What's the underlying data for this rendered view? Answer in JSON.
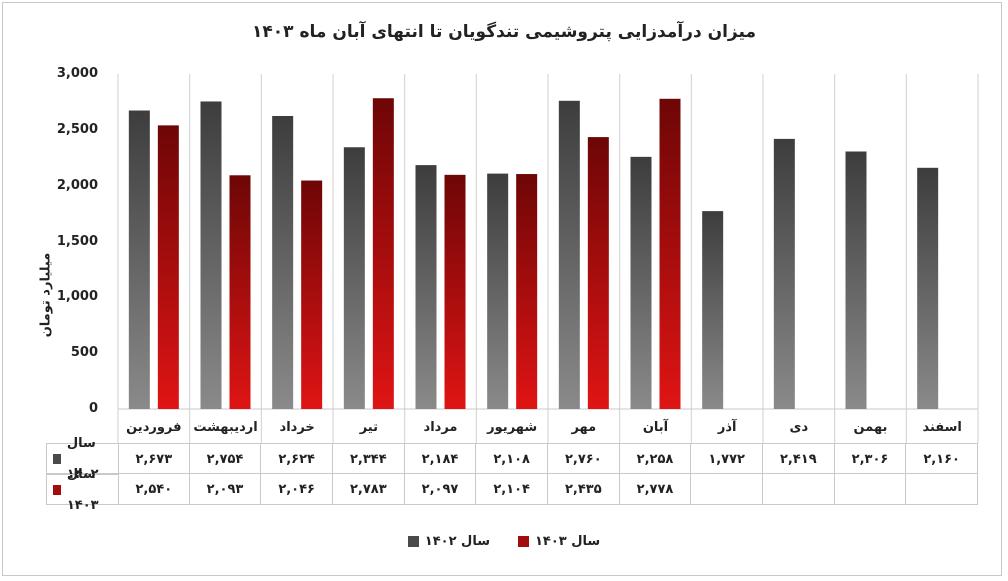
{
  "chart_data": {
    "type": "bar",
    "title": "میزان درآمدزایی پتروشیمی تندگویان تا انتهای آبان ماه ۱۴۰۳",
    "ylabel": "میلیارد تومان",
    "xlabel": "",
    "ylim": [
      0,
      3000
    ],
    "yticks": [
      0,
      500,
      1000,
      1500,
      2000,
      2500,
      3000
    ],
    "ytick_labels": [
      "0",
      "500",
      "1,000",
      "1,500",
      "2,000",
      "2,500",
      "3,000"
    ],
    "categories": [
      "فروردین",
      "اردیبهشت",
      "خرداد",
      "تیر",
      "مرداد",
      "شهریور",
      "مهر",
      "آبان",
      "آذر",
      "دی",
      "بهمن",
      "اسفند"
    ],
    "series": [
      {
        "name": "سال ۱۴۰۲",
        "color": "#4a4a4a",
        "values": [
          2673,
          2754,
          2624,
          2344,
          2184,
          2108,
          2760,
          2258,
          1772,
          2419,
          2306,
          2160
        ],
        "labels": [
          "۲,۶۷۳",
          "۲,۷۵۴",
          "۲,۶۲۴",
          "۲,۳۴۴",
          "۲,۱۸۴",
          "۲,۱۰۸",
          "۲,۷۶۰",
          "۲,۲۵۸",
          "۱,۷۷۲",
          "۲,۴۱۹",
          "۲,۳۰۶",
          "۲,۱۶۰"
        ]
      },
      {
        "name": "سال ۱۴۰۳",
        "color": "#a30c0c",
        "values": [
          2540,
          2093,
          2046,
          2783,
          2097,
          2104,
          2435,
          2778,
          null,
          null,
          null,
          null
        ],
        "labels": [
          "۲,۵۴۰",
          "۲,۰۹۳",
          "۲,۰۴۶",
          "۲,۷۸۳",
          "۲,۰۹۷",
          "۲,۱۰۴",
          "۲,۴۳۵",
          "۲,۷۷۸",
          "",
          "",
          "",
          ""
        ]
      }
    ],
    "grid": false,
    "legend": "bottom-center",
    "data_table": true
  }
}
